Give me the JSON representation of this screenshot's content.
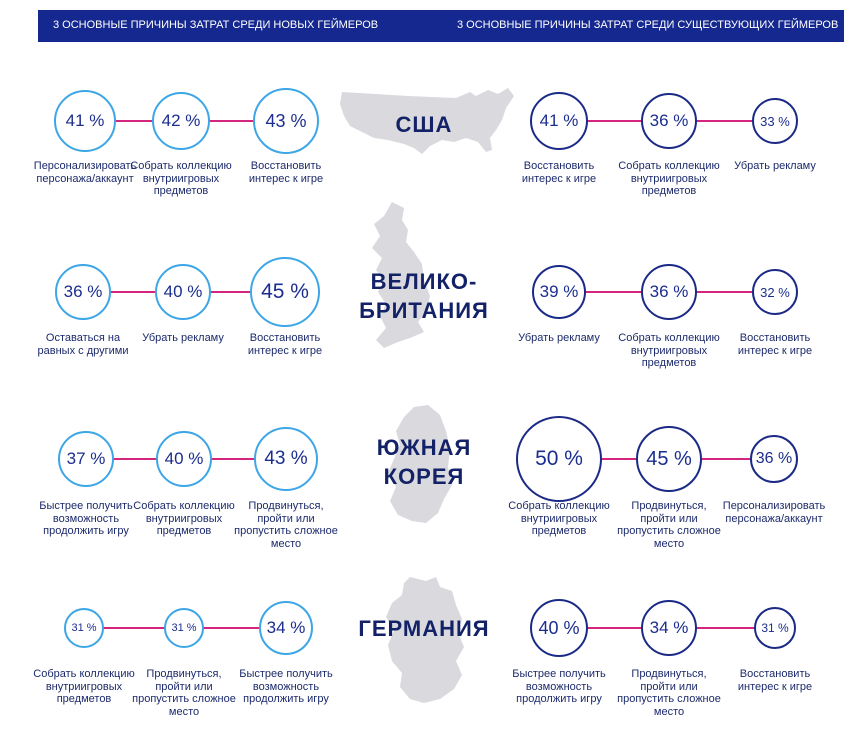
{
  "header": {
    "left": "3 ОСНОВНЫЕ ПРИЧИНЫ ЗАТРАТ СРЕДИ НОВЫХ ГЕЙМЕРОВ",
    "right": "3 ОСНОВНЫЕ ПРИЧИНЫ ЗАТРАТ СРЕДИ СУЩЕСТВУЮЩИХ ГЕЙМЕРОВ"
  },
  "colors": {
    "header_bg": "#15288f",
    "connector": "#d4267e",
    "new_ring": "#3da6e6",
    "existing_ring": "#1b2a86",
    "map": "#d9d9de"
  },
  "countries": [
    {
      "name": "США",
      "new": [
        {
          "pct": "41 %",
          "label": "Персонализировать персонажа/аккаунт"
        },
        {
          "pct": "42 %",
          "label": "Собрать коллекцию внутриигровых предметов"
        },
        {
          "pct": "43 %",
          "label": "Восстановить интерес к игре"
        }
      ],
      "existing": [
        {
          "pct": "41 %",
          "label": "Восстановить интерес к игре"
        },
        {
          "pct": "36 %",
          "label": "Собрать коллекцию внутриигровых предметов"
        },
        {
          "pct": "33 %",
          "label": "Убрать рекламу"
        }
      ]
    },
    {
      "name": "ВЕЛИКО-БРИТАНИЯ",
      "new": [
        {
          "pct": "36 %",
          "label": "Оставаться на равных с другими"
        },
        {
          "pct": "40 %",
          "label": "Убрать рекламу"
        },
        {
          "pct": "45 %",
          "label": "Восстановить интерес к игре"
        }
      ],
      "existing": [
        {
          "pct": "39 %",
          "label": "Убрать рекламу"
        },
        {
          "pct": "36 %",
          "label": "Собрать коллекцию внутриигровых предметов"
        },
        {
          "pct": "32 %",
          "label": "Восстановить интерес к игре"
        }
      ]
    },
    {
      "name": "ЮЖНАЯ КОРЕЯ",
      "new": [
        {
          "pct": "37 %",
          "label": "Быстрее получить возможность продолжить игру"
        },
        {
          "pct": "40 %",
          "label": "Собрать коллекцию внутриигровых предметов"
        },
        {
          "pct": "43 %",
          "label": "Продвинуться, пройти или пропустить сложное место"
        }
      ],
      "existing": [
        {
          "pct": "50 %",
          "label": "Собрать коллекцию внутриигровых предметов"
        },
        {
          "pct": "45 %",
          "label": "Продвинуться, пройти или пропустить сложное место"
        },
        {
          "pct": "36 %",
          "label": "Персонализировать персонажа/аккаунт"
        }
      ]
    },
    {
      "name": "ГЕРМАНИЯ",
      "new": [
        {
          "pct": "31 %",
          "label": "Собрать коллекцию внутриигровых предметов"
        },
        {
          "pct": "31 %",
          "label": "Продвинуться, пройти или пропустить сложное место"
        },
        {
          "pct": "34 %",
          "label": "Быстрее получить возможность продолжить игру"
        }
      ],
      "existing": [
        {
          "pct": "40 %",
          "label": "Быстрее получить возможность продолжить игру"
        },
        {
          "pct": "34 %",
          "label": "Продвинуться, пройти или пропустить сложное место"
        },
        {
          "pct": "31 %",
          "label": "Восстановить интерес к игре"
        }
      ]
    }
  ]
}
